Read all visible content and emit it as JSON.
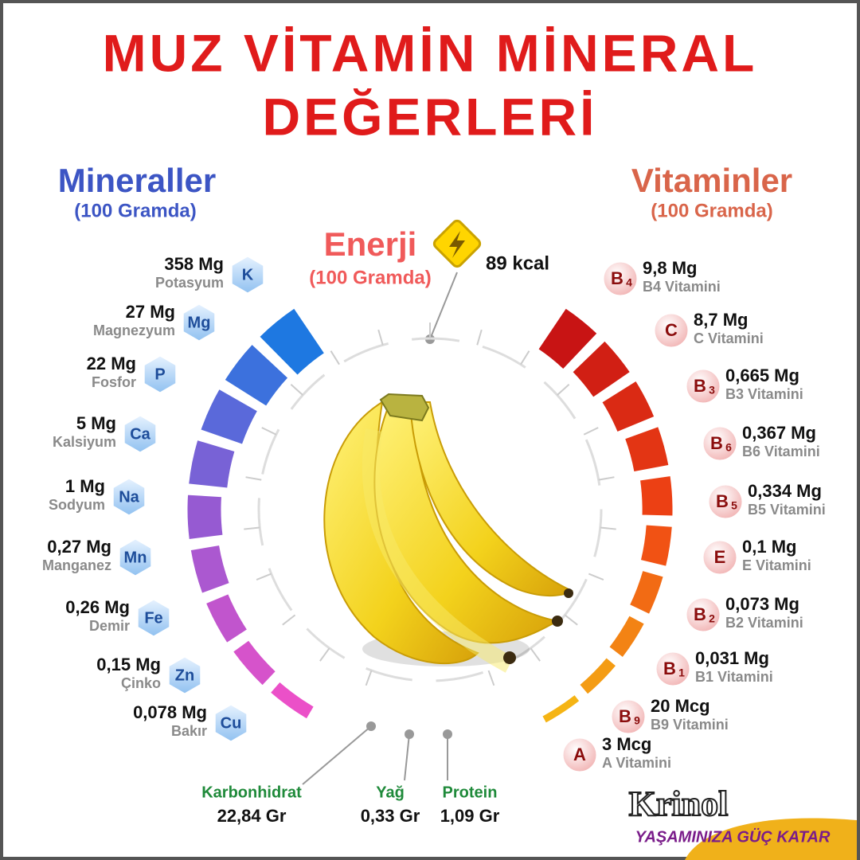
{
  "title": [
    "MUZ VİTAMİN MİNERAL",
    "DEĞERLERİ"
  ],
  "minerals": {
    "heading": "Mineraller",
    "subheading": "(100 Gramda)",
    "items": [
      {
        "amount": "358 Mg",
        "name": "Potasyum",
        "symbol": "K"
      },
      {
        "amount": "27 Mg",
        "name": "Magnezyum",
        "symbol": "Mg"
      },
      {
        "amount": "22 Mg",
        "name": "Fosfor",
        "symbol": "P"
      },
      {
        "amount": "5 Mg",
        "name": "Kalsiyum",
        "symbol": "Ca"
      },
      {
        "amount": "1 Mg",
        "name": "Sodyum",
        "symbol": "Na"
      },
      {
        "amount": "0,27 Mg",
        "name": "Manganez",
        "symbol": "Mn"
      },
      {
        "amount": "0,26 Mg",
        "name": "Demir",
        "symbol": "Fe"
      },
      {
        "amount": "0,15 Mg",
        "name": "Çinko",
        "symbol": "Zn"
      },
      {
        "amount": "0,078 Mg",
        "name": "Bakır",
        "symbol": "Cu"
      }
    ]
  },
  "vitamins": {
    "heading": "Vitaminler",
    "subheading": "(100 Gramda)",
    "items": [
      {
        "amount": "9,8 Mg",
        "name": "B4 Vitamini",
        "symbol": "B",
        "sub": "4"
      },
      {
        "amount": "8,7 Mg",
        "name": "C Vitamini",
        "symbol": "C"
      },
      {
        "amount": "0,665 Mg",
        "name": "B3 Vitamini",
        "symbol": "B",
        "sub": "3"
      },
      {
        "amount": "0,367 Mg",
        "name": "B6 Vitamini",
        "symbol": "B",
        "sub": "6"
      },
      {
        "amount": "0,334 Mg",
        "name": "B5 Vitamini",
        "symbol": "B",
        "sub": "5"
      },
      {
        "amount": "0,1 Mg",
        "name": "E Vitamini",
        "symbol": "E"
      },
      {
        "amount": "0,073 Mg",
        "name": "B2 Vitamini",
        "symbol": "B",
        "sub": "2"
      },
      {
        "amount": "0,031 Mg",
        "name": "B1 Vitamini",
        "symbol": "B",
        "sub": "1"
      },
      {
        "amount": "20 Mcg",
        "name": "B9 Vitamini",
        "symbol": "B",
        "sub": "9"
      },
      {
        "amount": "3 Mcg",
        "name": "A Vitamini",
        "symbol": "A"
      }
    ]
  },
  "energy": {
    "label": "Enerji",
    "subheading": "(100 Gramda)",
    "value": "89 kcal"
  },
  "macros": [
    {
      "name": "Karbonhidrat",
      "value": "22,84 Gr"
    },
    {
      "name": "Yağ",
      "value": "0,33 Gr"
    },
    {
      "name": "Protein",
      "value": "1,09 Gr"
    }
  ],
  "brand": {
    "name": "Krinol",
    "slogan": "YAŞAMINIZA GÜÇ KATAR"
  }
}
